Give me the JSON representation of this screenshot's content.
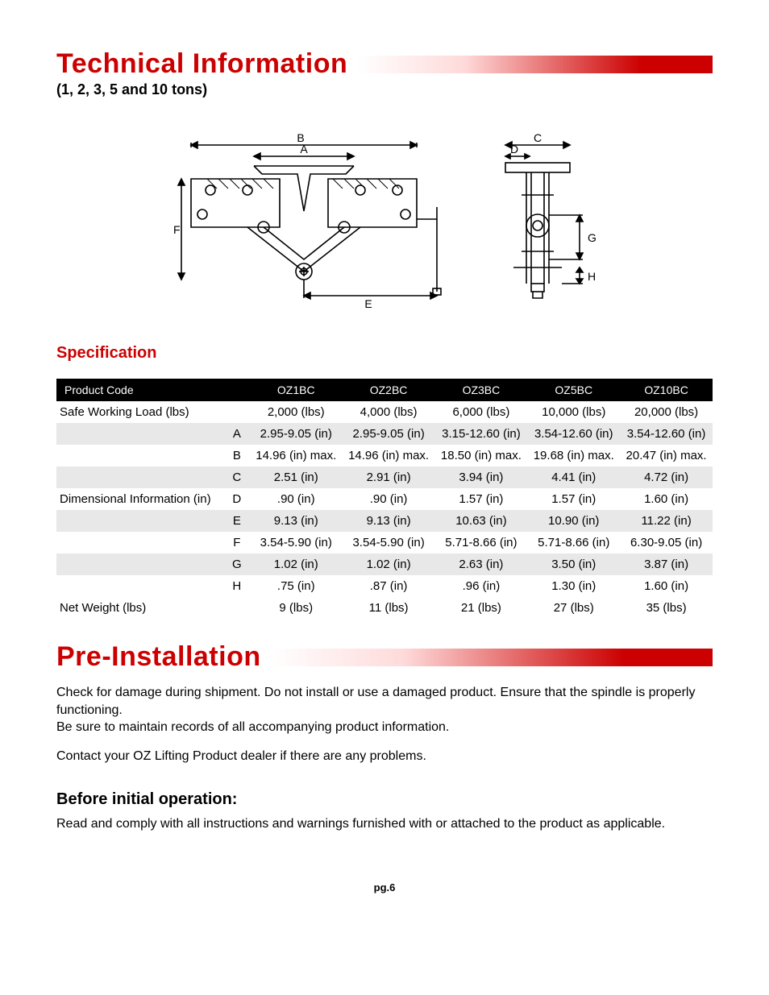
{
  "header1": {
    "title": "Technical Information",
    "subtitle": "(1, 2, 3, 5 and 10 tons)"
  },
  "specification_heading": "Specification",
  "spec_table": {
    "header_labels": [
      "Product Code",
      "",
      "OZ1BC",
      "OZ2BC",
      "OZ3BC",
      "OZ5BC",
      "OZ10BC"
    ],
    "rows": [
      {
        "label": "Safe Working Load (lbs)",
        "key": "",
        "vals": [
          "2,000 (lbs)",
          "4,000 (lbs)",
          "6,000 (lbs)",
          "10,000 (lbs)",
          "20,000 (lbs)"
        ],
        "shade": false
      },
      {
        "label": "",
        "key": "A",
        "vals": [
          "2.95-9.05 (in)",
          "2.95-9.05 (in)",
          "3.15-12.60 (in)",
          "3.54-12.60 (in)",
          "3.54-12.60 (in)"
        ],
        "shade": true
      },
      {
        "label": "",
        "key": "B",
        "vals": [
          "14.96 (in) max.",
          "14.96 (in) max.",
          "18.50 (in) max.",
          "19.68 (in) max.",
          "20.47 (in) max."
        ],
        "shade": false
      },
      {
        "label": "",
        "key": "C",
        "vals": [
          "2.51 (in)",
          "2.91 (in)",
          "3.94 (in)",
          "4.41 (in)",
          "4.72 (in)"
        ],
        "shade": true
      },
      {
        "label": "Dimensional Information (in)",
        "key": "D",
        "vals": [
          ".90 (in)",
          ".90 (in)",
          "1.57 (in)",
          "1.57 (in)",
          "1.60 (in)"
        ],
        "shade": false
      },
      {
        "label": "",
        "key": "E",
        "vals": [
          "9.13 (in)",
          "9.13 (in)",
          "10.63 (in)",
          "10.90 (in)",
          "11.22 (in)"
        ],
        "shade": true
      },
      {
        "label": "",
        "key": "F",
        "vals": [
          "3.54-5.90 (in)",
          "3.54-5.90 (in)",
          "5.71-8.66 (in)",
          "5.71-8.66 (in)",
          "6.30-9.05 (in)"
        ],
        "shade": false
      },
      {
        "label": "",
        "key": "G",
        "vals": [
          "1.02 (in)",
          "1.02 (in)",
          "2.63 (in)",
          "3.50 (in)",
          "3.87 (in)"
        ],
        "shade": true
      },
      {
        "label": "",
        "key": "H",
        "vals": [
          ".75 (in)",
          ".87 (in)",
          ".96 (in)",
          "1.30 (in)",
          "1.60 (in)"
        ],
        "shade": false
      },
      {
        "label": "Net Weight (lbs)",
        "key": "",
        "vals": [
          "9 (lbs)",
          "11 (lbs)",
          "21 (lbs)",
          "27 (lbs)",
          "35 (lbs)"
        ],
        "shade": false
      }
    ]
  },
  "header2": {
    "title": "Pre-Installation"
  },
  "preinstall": {
    "para1": "Check for damage during shipment. Do not install or use a damaged product. Ensure that the spindle is properly functioning.",
    "para2": "Be sure to maintain records of all accompanying product information.",
    "para3": "Contact your OZ Lifting Product dealer if there are any problems.",
    "before_heading": "Before initial operation:",
    "before_text": "Read and comply with all instructions and warnings furnished with or attached to the product as applicable."
  },
  "footer": "pg.6",
  "diagram": {
    "stroke": "#000000",
    "stroke_width": 1.5,
    "font_family": "Arial",
    "label_fontsize": 14
  }
}
